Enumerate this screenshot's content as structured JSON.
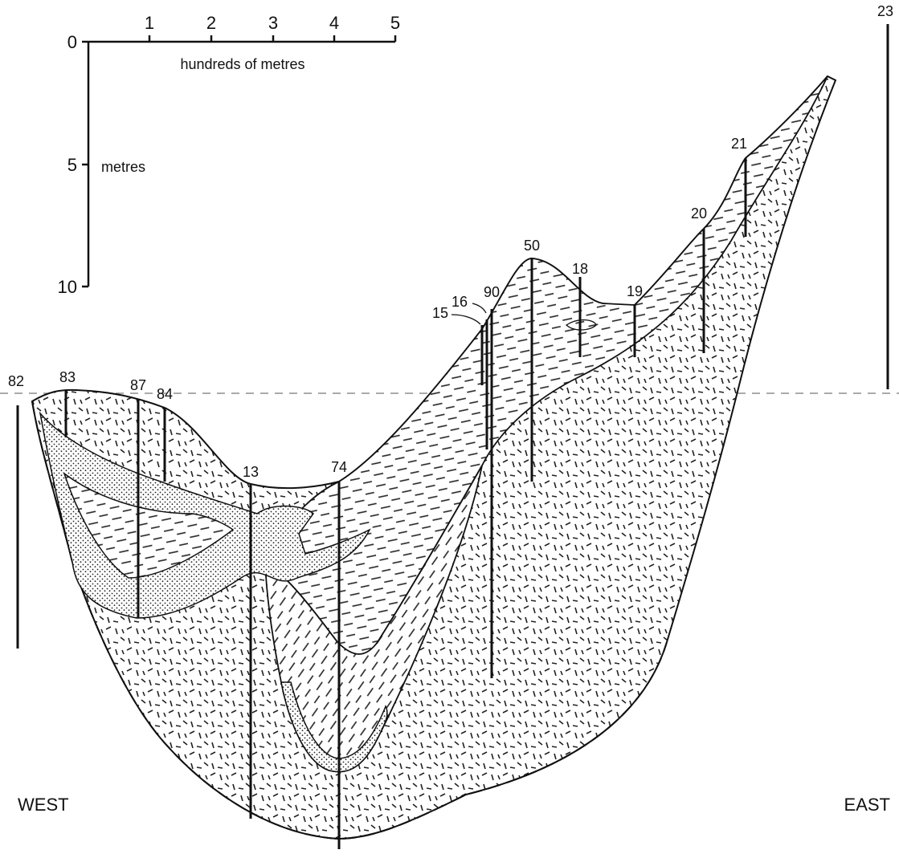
{
  "scale": {
    "x_ticks": [
      "1",
      "2",
      "3",
      "4",
      "5"
    ],
    "x_label": "hundreds of metres",
    "y_ticks": [
      "0",
      "5",
      "10"
    ],
    "y_label": "metres"
  },
  "boreholes": [
    "82",
    "83",
    "87",
    "84",
    "13",
    "74",
    "15",
    "16",
    "90",
    "50",
    "18",
    "19",
    "20",
    "21",
    "23"
  ],
  "directions": {
    "west": "WEST",
    "east": "EAST"
  }
}
